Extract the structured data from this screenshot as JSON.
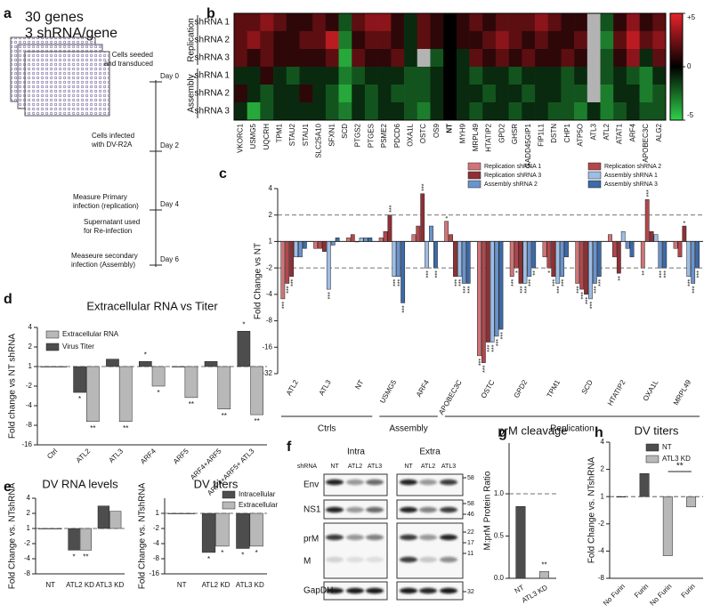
{
  "panel_letters": [
    "a",
    "b",
    "c",
    "d",
    "e",
    "f",
    "g",
    "h"
  ],
  "schematic": {
    "title": [
      "30 genes",
      "3 shRNA/gene"
    ],
    "events": [
      {
        "label": [
          "Cells seeded",
          "and transduced"
        ],
        "day": "Day 0"
      },
      {
        "label": [
          "Cells infected",
          "with DV-R2A"
        ],
        "day": "Day 2"
      },
      {
        "label": [
          "Measure Primary",
          "infection (replication)",
          "Supernatant used",
          "for Re-infection"
        ],
        "day": "Day 4"
      },
      {
        "label": [
          "Measeure secondary",
          "infection (Assembly)"
        ],
        "day": "Day 6"
      }
    ]
  },
  "chart_data": [
    {
      "type": "heatmap",
      "row_groups": [
        "Replication",
        "Assembly"
      ],
      "rows": [
        "shRNA 1",
        "shRNA 2",
        "shRNA 3",
        "shRNA 1",
        "shRNA 2",
        "shRNA 3"
      ],
      "columns": [
        "VKORC1",
        "USMG5",
        "UQCRH",
        "TPM1",
        "STAU2",
        "STAU1",
        "SLC25A10",
        "SFXN1",
        "SCD",
        "PTGS2",
        "PTGES",
        "PSME2",
        "PDCD6",
        "OXA1L",
        "OSTC",
        "OS9",
        "NT",
        "MYH9",
        "MRPL49",
        "HTATIP2",
        "GPD2",
        "GHSR",
        "GADD45GIP1",
        "FIP1L1",
        "DSTN",
        "CHP1",
        "ATP5O",
        "ATL3",
        "ATL2",
        "ATAT1",
        "ARF4",
        "APOBEC3C",
        "ALG2"
      ],
      "values": [
        [
          2,
          2,
          3,
          2,
          1,
          1,
          2,
          1,
          -2,
          2,
          3,
          3,
          1,
          -1,
          2,
          1,
          0,
          1,
          2,
          1,
          2,
          2,
          2,
          3,
          2,
          1,
          1,
          null,
          -2,
          1,
          3,
          1,
          2
        ],
        [
          2,
          3,
          2,
          1,
          1,
          2,
          2,
          4,
          -3,
          1,
          2,
          2,
          1,
          -1,
          2,
          1,
          0,
          1,
          1,
          2,
          3,
          2,
          1,
          2,
          1,
          1,
          2,
          null,
          -3,
          2,
          4,
          2,
          3
        ],
        [
          2,
          1,
          2,
          1,
          1,
          1,
          1,
          2,
          -4,
          2,
          1,
          1,
          2,
          -1,
          null,
          -2,
          0,
          -1,
          2,
          1,
          2,
          1,
          2,
          1,
          1,
          2,
          1,
          null,
          -2,
          1,
          3,
          -1,
          2
        ],
        [
          -1,
          -1,
          1,
          -1,
          -2,
          -1,
          -1,
          -1,
          -3,
          -2,
          -1,
          -1,
          -1,
          -2,
          -2,
          -1,
          0,
          -1,
          -2,
          -1,
          -1,
          -2,
          -1,
          -1,
          -1,
          -2,
          -1,
          null,
          -2,
          -1,
          -2,
          -3,
          -1
        ],
        [
          1,
          -1,
          -2,
          -1,
          -1,
          1,
          -1,
          -2,
          -4,
          -1,
          -2,
          -1,
          -2,
          -2,
          -2,
          -1,
          0,
          -1,
          -1,
          -2,
          -1,
          -1,
          -2,
          -1,
          -1,
          -2,
          -2,
          null,
          -3,
          -1,
          -1,
          -3,
          -2
        ],
        [
          -1,
          -4,
          -2,
          -1,
          -1,
          -1,
          -1,
          -2,
          -3,
          -1,
          -2,
          -1,
          -1,
          -2,
          -3,
          -1,
          0,
          -1,
          -2,
          -1,
          -1,
          -2,
          -1,
          -1,
          -2,
          -2,
          -3,
          -1,
          -3,
          -2,
          -1,
          -2,
          -2
        ]
      ],
      "clim": [
        -5,
        5
      ],
      "cticks": [
        {
          "value": 5,
          "label": "+5"
        },
        0,
        {
          "value": -5,
          "label": "-5"
        }
      ],
      "colors": {
        "positive": "#e8232b",
        "zero": "#000000",
        "negative": "#2fd24a",
        "missing": "#b3b3b3"
      }
    },
    {
      "type": "bar",
      "ylabel": "Fold Change vs NT",
      "scale": "signed-log2",
      "categories": [
        "ATL2",
        "ATL3",
        "NT",
        "USMG5",
        "ARF4",
        "APOBEC3C",
        "OSTC",
        "GPD2",
        "TPM1",
        "SCD",
        "HTATIP2",
        "OXA1L",
        "MRPL49"
      ],
      "series": [
        {
          "name": "Replication shRNA 1",
          "color": "#d07478",
          "values": [
            -4.5,
            -1.2,
            1.1,
            1.1,
            1.2,
            1.7,
            -20,
            -2.5,
            -1.5,
            -3,
            1.2,
            -2,
            -1.2
          ],
          "significance": [
            "***",
            null,
            null,
            null,
            null,
            "*",
            "***",
            "***",
            null,
            "***",
            null,
            "**",
            null
          ]
        },
        {
          "name": "Replication shRNA 2",
          "color": "#b3474b",
          "values": [
            -3,
            -1.2,
            1.2,
            1.3,
            1.5,
            1.2,
            -24,
            -2,
            -2,
            -3.5,
            -1.5,
            3,
            -1.5
          ],
          "significance": [
            "***",
            null,
            null,
            null,
            null,
            null,
            "***",
            "*",
            "*",
            "***",
            null,
            "***",
            null
          ]
        },
        {
          "name": "Replication shRNA 3",
          "color": "#8e3035",
          "values": [
            -2.5,
            -1.3,
            1,
            2,
            3.5,
            -2.5,
            -14,
            -3,
            -2.5,
            -4,
            -2.3,
            1.3,
            1.5
          ],
          "significance": [
            "***",
            null,
            null,
            "***",
            "***",
            "***",
            "***",
            "***",
            "***",
            "***",
            "**",
            null,
            "*"
          ]
        },
        {
          "name": "Assembly shRNA 1",
          "color": "#9dbde4",
          "values": [
            -1.5,
            -3.5,
            1.1,
            -2.5,
            -2,
            -2.5,
            -14,
            -3,
            -3,
            -4.5,
            1.3,
            1.2,
            -2.5
          ],
          "significance": [
            null,
            "***",
            null,
            "***",
            "***",
            "***",
            "***",
            "***",
            "***",
            "***",
            null,
            null,
            "***"
          ]
        },
        {
          "name": "Assembly shRNA 2",
          "color": "#6b93cc",
          "values": [
            -1.5,
            -1.1,
            1.1,
            -2.5,
            1.5,
            -3,
            -12,
            -2.5,
            -2.5,
            -3,
            -1.2,
            -2,
            -3
          ],
          "significance": [
            null,
            null,
            null,
            "***",
            null,
            "***",
            "***",
            "***",
            "***",
            "***",
            null,
            "***",
            "***"
          ]
        },
        {
          "name": "Assembly shRNA 3",
          "color": "#3d6aa8",
          "values": [
            -1.2,
            1.1,
            1.1,
            -5,
            -2,
            -3,
            -10,
            -2,
            -1.5,
            -2.5,
            -1.5,
            -2,
            -2
          ],
          "significance": [
            null,
            null,
            null,
            "***",
            "***",
            "***",
            "***",
            "**",
            null,
            "***",
            null,
            "***",
            "***"
          ]
        }
      ],
      "ylim": [
        -32,
        4
      ],
      "yticks": [
        4,
        2,
        1,
        -2,
        -4,
        -8,
        -16,
        -32
      ],
      "reference_lines": [
        2,
        -2
      ],
      "group_labels": [
        "Ctrls",
        "Assembly",
        "Replication"
      ]
    },
    {
      "type": "bar",
      "title": "Extracellular RNA vs Titer",
      "ylabel": "Fold change vs NT shRNA",
      "scale": "signed-log2",
      "categories": [
        "Ctrl",
        "ATL2",
        "ATL3",
        "ARF4",
        "ARF5",
        "ARF4+ARF5",
        "ARF4+ARF5+ ATL3"
      ],
      "series": [
        {
          "name": "Extracellular RNA",
          "color": "#b8b8b8",
          "values": [
            1,
            -7,
            -7,
            -2,
            -3,
            -4.5,
            -5.5
          ],
          "significance": [
            null,
            "**",
            "**",
            "*",
            "**",
            "**",
            "**"
          ]
        },
        {
          "name": "Virus Titer",
          "color": "#4d4d4d",
          "values": [
            1,
            -2.5,
            1.3,
            1.2,
            1,
            1.2,
            3.5
          ],
          "significance": [
            null,
            "*",
            null,
            "*",
            null,
            null,
            "*"
          ]
        }
      ],
      "ylim": [
        -16,
        4
      ],
      "yticks": [
        4,
        2,
        1,
        -2,
        -4,
        -8,
        -16
      ],
      "reference_lines": [
        1
      ]
    },
    {
      "type": "bar",
      "title": "DV RNA levels",
      "ylabel": "Fold Change vs. NTshRNA",
      "scale": "signed-log2",
      "categories": [
        "NT",
        "ATL2 KD",
        "ATL3 KD"
      ],
      "series": [
        {
          "color": "#4d4d4d",
          "values": [
            1,
            -2.7,
            2.8
          ],
          "significance": [
            null,
            "*",
            null
          ]
        },
        {
          "color": "#b8b8b8",
          "values": [
            1,
            -2.7,
            2.2
          ],
          "significance": [
            null,
            "**",
            null
          ]
        }
      ],
      "ylim": [
        -8,
        4
      ],
      "yticks": [
        4,
        2,
        1,
        -2,
        -4,
        -8
      ],
      "reference_lines": [
        1
      ]
    },
    {
      "type": "bar",
      "title": "DV titers",
      "ylabel": "Fold Change vs. NTshRNA",
      "scale": "signed-log2",
      "categories": [
        "NT",
        "ATL2 KD",
        "ATL3 KD"
      ],
      "series": [
        {
          "name": "Intracellular",
          "color": "#4d4d4d",
          "values": [
            1,
            -6,
            -5
          ],
          "significance": [
            null,
            "*",
            "*"
          ]
        },
        {
          "name": "Extracellular",
          "color": "#b8b8b8",
          "values": [
            1,
            -4.5,
            -4.5
          ],
          "significance": [
            null,
            "*",
            "*"
          ]
        }
      ],
      "ylim": [
        -16,
        2
      ],
      "yticks": [
        1,
        -2,
        -4,
        -8,
        -16
      ],
      "reference_lines": [
        1
      ]
    },
    {
      "type": "bar",
      "title": "prM cleavage",
      "ylabel": "M:prM Protein Ratio",
      "scale": "linear",
      "categories": [
        "NT",
        "ATL3 KD"
      ],
      "values": [
        0.85,
        0.08
      ],
      "colors": [
        "#4d4d4d",
        "#b8b8b8"
      ],
      "significance": [
        null,
        "**"
      ],
      "ylim": [
        0,
        1.6
      ],
      "yticks": [
        {
          "value": 0,
          "label": "0.0"
        },
        {
          "value": 0.5,
          "label": "0.5"
        },
        {
          "value": 1,
          "label": "1.0"
        }
      ],
      "reference_lines": [
        1
      ]
    },
    {
      "type": "bar",
      "title": "DV titers",
      "ylabel": "Fold Change vs. NTshRNA",
      "scale": "signed-log2",
      "categories": [
        "No Furin",
        "Furin",
        "No Furin",
        "Furin"
      ],
      "series": [
        {
          "name": "NT",
          "color": "#4d4d4d",
          "values": [
            1,
            1.8,
            null,
            null
          ]
        },
        {
          "name": "ATL3 KD",
          "color": "#b8b8b8",
          "values": [
            null,
            null,
            -4.5,
            -1.3
          ]
        }
      ],
      "ylim": [
        -8,
        4
      ],
      "yticks": [
        4,
        2,
        1,
        -2,
        -4,
        -8
      ],
      "reference_lines": [
        1
      ],
      "comparison_label": "**"
    }
  ],
  "blot": {
    "groups": [
      "Intra",
      "Extra"
    ],
    "lane_header": "shRNA",
    "lanes": [
      "NT",
      "ATL2",
      "ATL3",
      "NT",
      "ATL2",
      "ATL3"
    ],
    "rows": [
      "Env",
      "NS1",
      "prM",
      "M",
      "GapDH"
    ],
    "markers": [
      58,
      58,
      46,
      22,
      17,
      11,
      32
    ]
  }
}
